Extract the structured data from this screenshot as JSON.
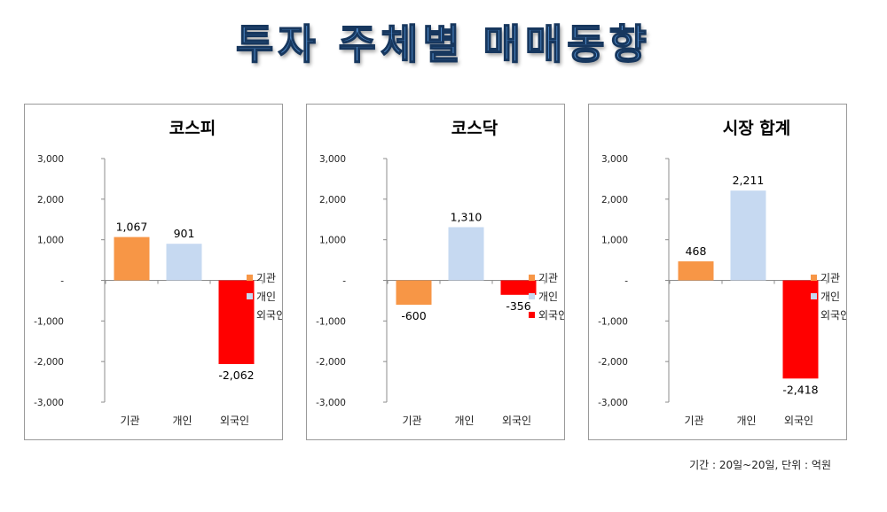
{
  "title": "투자 주체별 매매동향",
  "footnote": "기간 : 20일~20일, 단위 : 억원",
  "colors": {
    "기관": "#f79646",
    "개인": "#c6d9f1",
    "외국인": "#ff0000"
  },
  "chart_data": [
    {
      "type": "bar",
      "title": "코스피",
      "categories": [
        "기관",
        "개인",
        "외국인"
      ],
      "values": [
        1067,
        901,
        -2062
      ],
      "value_labels": [
        "1,067",
        "901",
        "-2,062"
      ],
      "ylim": [
        -3000,
        3000
      ],
      "yticks": [
        3000,
        2000,
        1000,
        0,
        -1000,
        -2000,
        -3000
      ],
      "ytick_labels": [
        "3,000",
        "2,000",
        "1,000",
        "-",
        "-1,000",
        "-2,000",
        "-3,000"
      ],
      "legend": [
        "기관",
        "개인",
        "외국인"
      ],
      "legend_position": "right",
      "grid": false
    },
    {
      "type": "bar",
      "title": "코스닥",
      "categories": [
        "기관",
        "개인",
        "외국인"
      ],
      "values": [
        -600,
        1310,
        -356
      ],
      "value_labels": [
        "-600",
        "1,310",
        "-356"
      ],
      "ylim": [
        -3000,
        3000
      ],
      "yticks": [
        3000,
        2000,
        1000,
        0,
        -1000,
        -2000,
        -3000
      ],
      "ytick_labels": [
        "3,000",
        "2,000",
        "1,000",
        "-",
        "-1,000",
        "-2,000",
        "-3,000"
      ],
      "legend": [
        "기관",
        "개인",
        "외국인"
      ],
      "legend_position": "right",
      "grid": false
    },
    {
      "type": "bar",
      "title": "시장 합계",
      "categories": [
        "기관",
        "개인",
        "외국인"
      ],
      "values": [
        468,
        2211,
        -2418
      ],
      "value_labels": [
        "468",
        "2,211",
        "-2,418"
      ],
      "ylim": [
        -3000,
        3000
      ],
      "yticks": [
        3000,
        2000,
        1000,
        0,
        -1000,
        -2000,
        -3000
      ],
      "ytick_labels": [
        "3,000",
        "2,000",
        "1,000",
        "-",
        "-1,000",
        "-2,000",
        "-3,000"
      ],
      "legend": [
        "기관",
        "개인",
        "외국인"
      ],
      "legend_position": "right",
      "grid": false
    }
  ]
}
